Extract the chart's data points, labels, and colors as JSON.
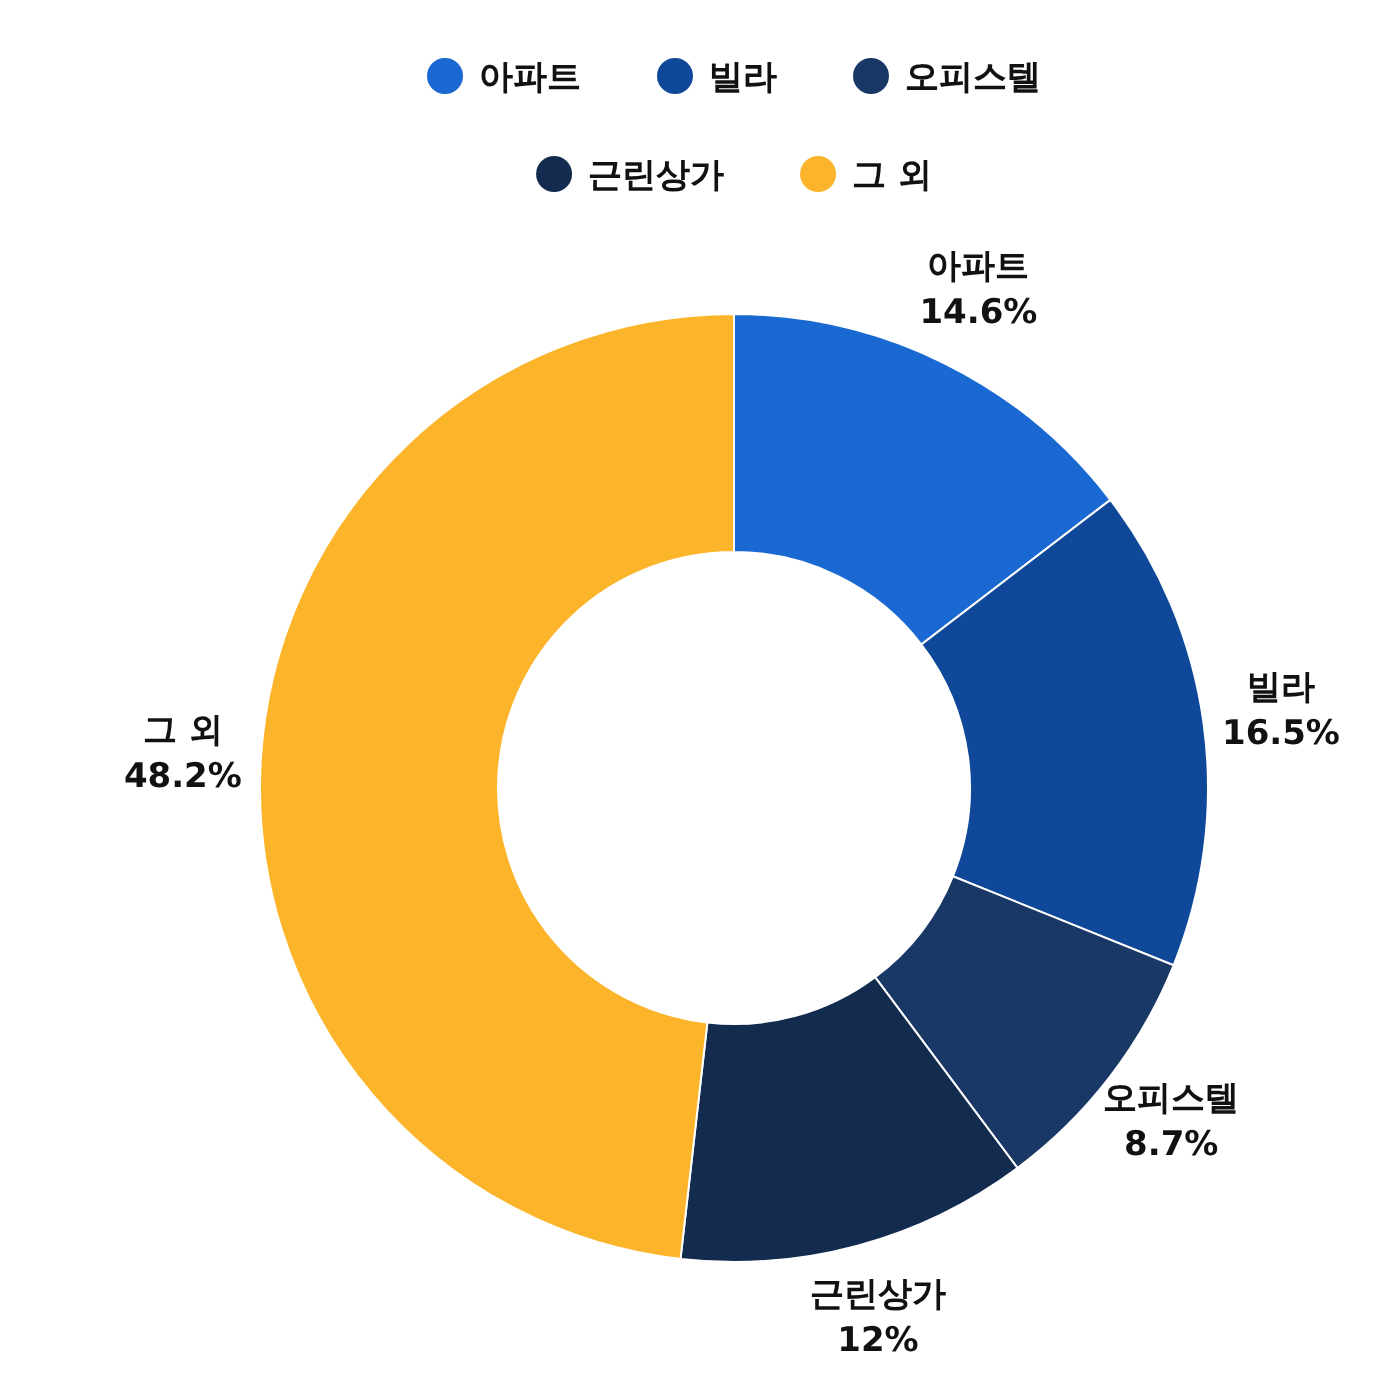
{
  "chart_data": {
    "type": "donut",
    "categories": [
      "아파트",
      "빌라",
      "오피스텔",
      "근린상가",
      "그 외"
    ],
    "values": [
      14.6,
      16.5,
      8.7,
      12,
      48.2
    ],
    "colors": [
      "#1a69d2",
      "#0f4899",
      "#1a3866",
      "#142b50",
      "#fcb42a"
    ],
    "value_labels": [
      "14.6%",
      "16.5%",
      "8.7%",
      "12%",
      "48.2%"
    ],
    "legend": "top"
  }
}
